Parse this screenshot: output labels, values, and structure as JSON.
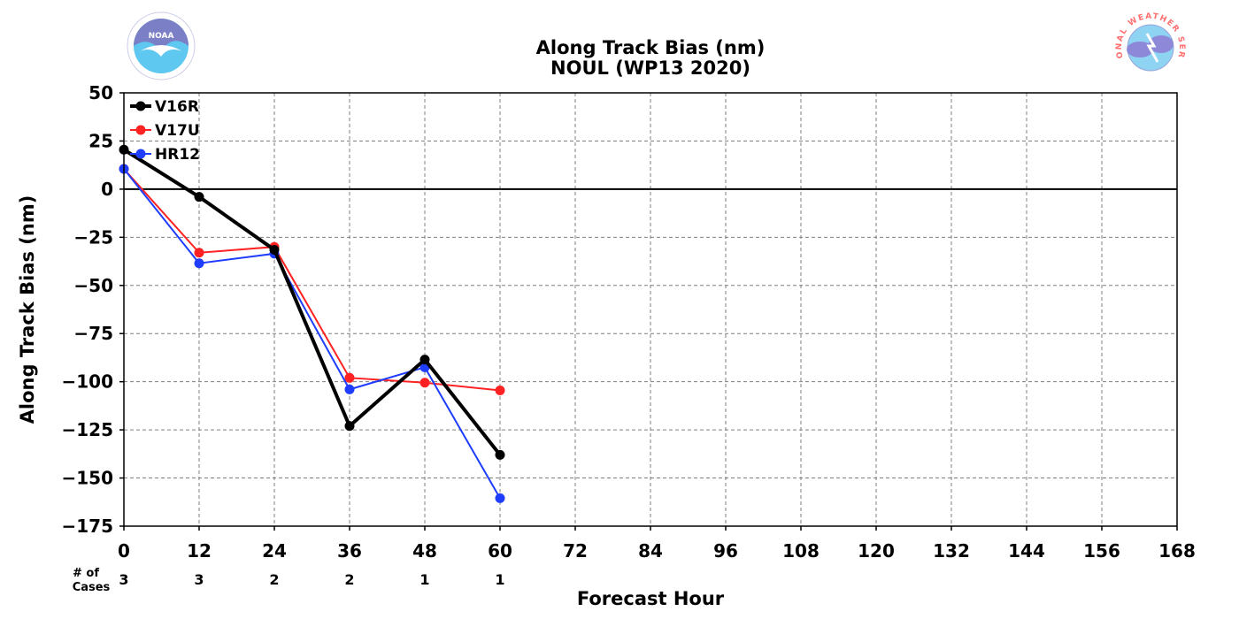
{
  "logos": {
    "left": {
      "name": "noaa-logo",
      "text": "NOAA",
      "color_dark": "#7b7fc6",
      "color_light": "#5ec8f0"
    },
    "right": {
      "name": "nws-logo",
      "text": "NATIONAL WEATHER SERVICE",
      "color_text": "#ff6f6f",
      "color_cloud": "#8e88d8",
      "color_sky": "#8fd3f3"
    }
  },
  "chart_data": {
    "type": "line",
    "title": "Along Track Bias (nm)",
    "subtitle": "NOUL (WP13 2020)",
    "xlabel": "Forecast Hour",
    "ylabel": "Along Track Bias (nm)",
    "xlim": [
      0,
      168
    ],
    "ylim": [
      -175,
      50
    ],
    "xticks": [
      0,
      12,
      24,
      36,
      48,
      60,
      72,
      84,
      96,
      108,
      120,
      132,
      144,
      156,
      168
    ],
    "yticks": [
      50,
      25,
      0,
      -25,
      -50,
      -75,
      -100,
      -125,
      -150,
      -175
    ],
    "ytick_labels": [
      "50",
      "25",
      "0",
      "−25",
      "−50",
      "−75",
      "−100",
      "−125",
      "−150",
      "−175"
    ],
    "grid": true,
    "legend_position": "top-left",
    "cases_label": [
      "# of",
      "Cases"
    ],
    "cases": [
      {
        "x": 0,
        "n": "3"
      },
      {
        "x": 12,
        "n": "3"
      },
      {
        "x": 24,
        "n": "2"
      },
      {
        "x": 36,
        "n": "2"
      },
      {
        "x": 48,
        "n": "1"
      },
      {
        "x": 60,
        "n": "1"
      }
    ],
    "series": [
      {
        "name": "V17U",
        "color": "#ff2222",
        "width": 2,
        "x": [
          0,
          12,
          24,
          36,
          48,
          60
        ],
        "values": [
          10.5,
          -33,
          -30,
          -98,
          -100.5,
          -104.5
        ]
      },
      {
        "name": "HR12",
        "color": "#1f3dff",
        "width": 2,
        "x": [
          0,
          12,
          24,
          36,
          48,
          60
        ],
        "values": [
          10.5,
          -38.5,
          -33.5,
          -104,
          -92.5,
          -160.5
        ]
      },
      {
        "name": "V16R",
        "color": "#000000",
        "width": 4,
        "x": [
          0,
          12,
          24,
          36,
          48,
          60
        ],
        "values": [
          20.5,
          -4,
          -31.5,
          -123,
          -88.5,
          -138
        ]
      }
    ],
    "legend_order": [
      "V16R",
      "V17U",
      "HR12"
    ]
  }
}
